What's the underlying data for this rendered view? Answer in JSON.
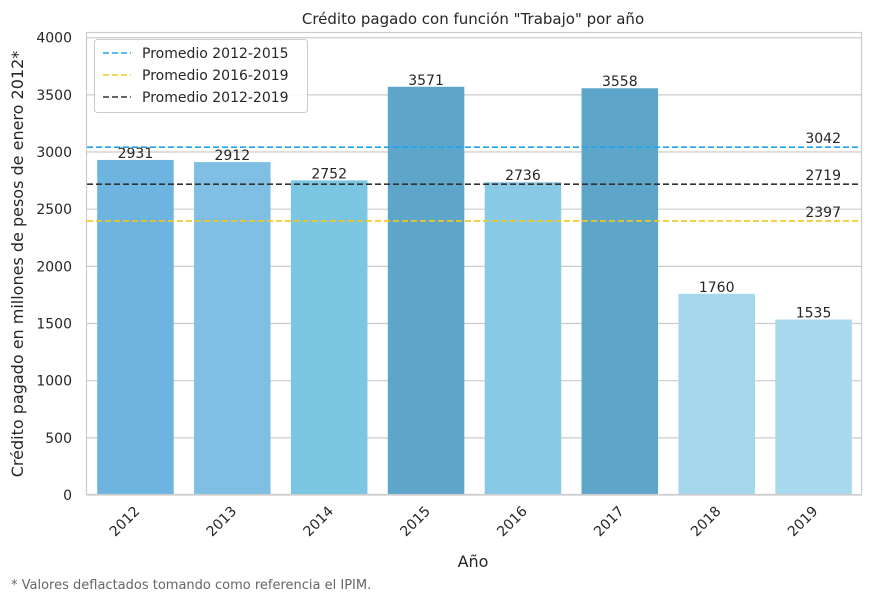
{
  "footnote": "* Valores deflactados tomando como referencia el IPIM.",
  "chart_data": {
    "type": "bar",
    "title": "Crédito pagado con función \"Trabajo\" por año",
    "xlabel": "Año",
    "ylabel": "Crédito pagado en millones de pesos de enero 2012*",
    "categories": [
      "2012",
      "2013",
      "2014",
      "2015",
      "2016",
      "2017",
      "2018",
      "2019"
    ],
    "values": [
      2931,
      2912,
      2752,
      3571,
      2736,
      3558,
      1760,
      1535
    ],
    "data_labels": [
      "2931",
      "2912",
      "2752",
      "3571",
      "2736",
      "3558",
      "1760",
      "1535"
    ],
    "bar_colors": [
      "#6db5e0",
      "#7fbfe3",
      "#7ac6e3",
      "#5ea6c9",
      "#88c9e6",
      "#5ea6c9",
      "#a4d6ec",
      "#a8d9ee"
    ],
    "ylim": [
      0,
      4050
    ],
    "yticks": [
      0,
      500,
      1000,
      1500,
      2000,
      2500,
      3000,
      3500,
      4000
    ],
    "grid": "horizontal",
    "legend_position": "top-left",
    "reference_lines": [
      {
        "name": "Promedio 2012-2015",
        "value": 3042,
        "label": "3042",
        "color": "#1ea5f0"
      },
      {
        "name": "Promedio 2016-2019",
        "value": 2397,
        "label": "2397",
        "color": "#f2c81c"
      },
      {
        "name": "Promedio 2012-2019",
        "value": 2719,
        "label": "2719",
        "color": "#333333"
      }
    ]
  }
}
